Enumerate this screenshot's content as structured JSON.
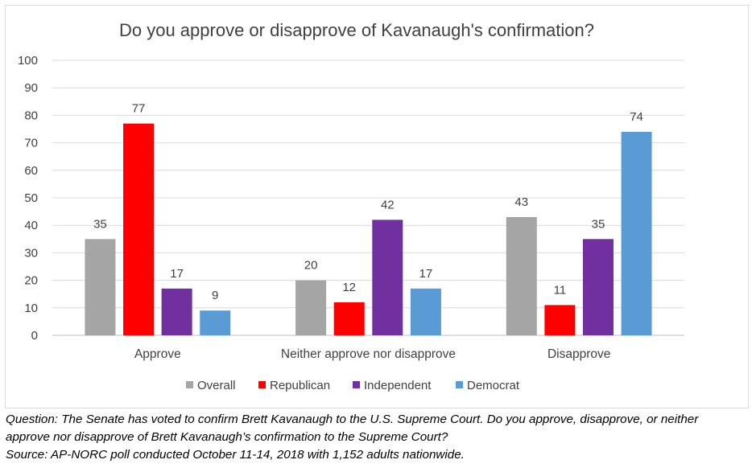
{
  "chart_data": {
    "type": "bar",
    "title": "Do you approve or disapprove of Kavanaugh's confirmation?",
    "categories": [
      "Approve",
      "Neither approve nor disapprove",
      "Disapprove"
    ],
    "series": [
      {
        "name": "Overall",
        "color": "#a5a5a5",
        "values": [
          35,
          20,
          43
        ]
      },
      {
        "name": "Republican",
        "color": "#ff0000",
        "values": [
          77,
          12,
          11
        ]
      },
      {
        "name": "Independent",
        "color": "#7030a0",
        "values": [
          17,
          42,
          35
        ]
      },
      {
        "name": "Democrat",
        "color": "#5b9bd5",
        "values": [
          9,
          17,
          74
        ]
      }
    ],
    "ylim": [
      0,
      100
    ],
    "yticks": [
      0,
      10,
      20,
      30,
      40,
      50,
      60,
      70,
      80,
      90,
      100
    ],
    "xlabel": "",
    "ylabel": "",
    "grid": true,
    "legend": "bottom"
  },
  "caption": {
    "question_line1": "Question: The Senate has voted to confirm Brett Kavanaugh to the U.S. Supreme Court. Do you approve, disapprove, or neither",
    "question_line2": "approve nor disapprove of Brett Kavanaugh’s confirmation to the Supreme Court?",
    "source": "Source: AP-NORC poll conducted October 11-14, 2018 with 1,152 adults nationwide."
  }
}
